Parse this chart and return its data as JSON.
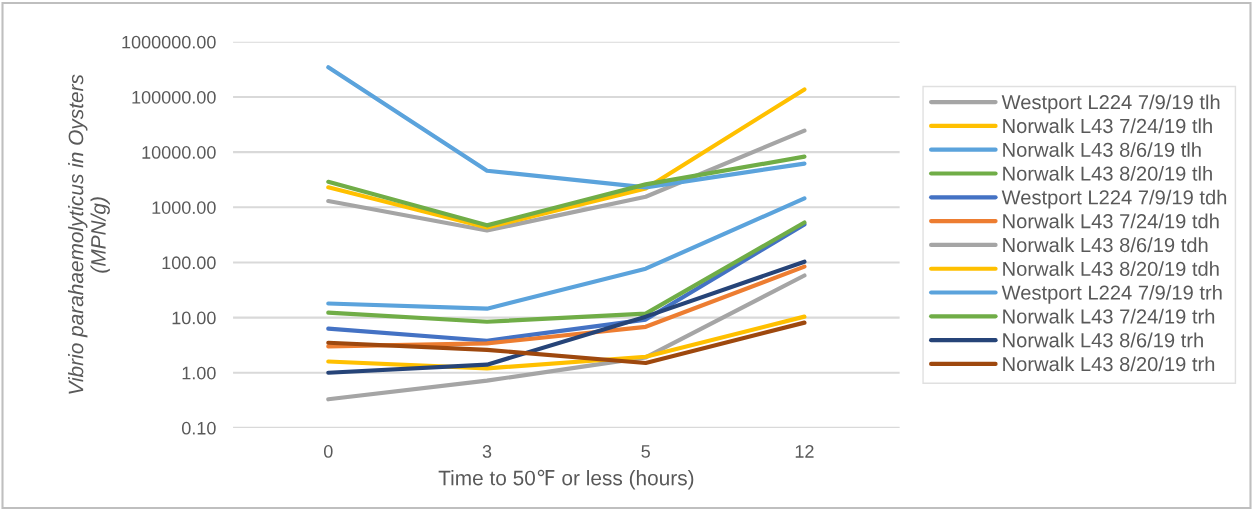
{
  "chart_data": {
    "type": "line",
    "xlabel": "Time to 50℉ or less (hours)",
    "ylabel": "Vibrio parahaemolyticus in Oysters\n(MPN/g)",
    "categories": [
      "0",
      "3",
      "5",
      "12"
    ],
    "log": "y",
    "ylim": [
      0.1,
      1000000
    ],
    "yticks": [
      {
        "value": 0.1,
        "label": "0.10"
      },
      {
        "value": 1,
        "label": "1.00"
      },
      {
        "value": 10,
        "label": "10.00"
      },
      {
        "value": 100,
        "label": "100.00"
      },
      {
        "value": 1000,
        "label": "1000.00"
      },
      {
        "value": 10000,
        "label": "10000.00"
      },
      {
        "value": 100000,
        "label": "100000.00"
      },
      {
        "value": 1000000,
        "label": "1000000.00"
      }
    ],
    "grid": "y",
    "legend": "right",
    "marker": "none",
    "line_style": "solid",
    "series": [
      {
        "name": "Westport L224 7/9/19 tlh",
        "color": "#a5a5a5",
        "values": [
          1300,
          380,
          1550,
          24500
        ]
      },
      {
        "name": "Norwalk L43 7/24/19 tlh",
        "color": "#ffc000",
        "values": [
          2300,
          430,
          2200,
          137000
        ]
      },
      {
        "name": "Norwalk L43 8/6/19 tlh",
        "color": "#5ba3dc",
        "values": [
          345000,
          4600,
          2300,
          6200
        ]
      },
      {
        "name": "Norwalk L43 8/20/19 tlh",
        "color": "#70ad47",
        "values": [
          2900,
          470,
          2600,
          8300
        ]
      },
      {
        "name": "Westport L224 7/9/19 tdh",
        "color": "#4472c4",
        "values": [
          6.3,
          3.8,
          9.2,
          490
        ]
      },
      {
        "name": "Norwalk L43 7/24/19 tdh",
        "color": "#ed7d31",
        "values": [
          3.0,
          3.4,
          6.8,
          84
        ]
      },
      {
        "name": "Norwalk L43 8/6/19 tdh",
        "color": "#a5a5a5",
        "values": [
          0.33,
          0.72,
          1.9,
          58
        ]
      },
      {
        "name": "Norwalk L43 8/20/19 tdh",
        "color": "#ffc000",
        "values": [
          1.6,
          1.2,
          1.95,
          10.4
        ]
      },
      {
        "name": "Westport L224 7/9/19 trh",
        "color": "#5ba3dc",
        "values": [
          18,
          14.5,
          77,
          1450
        ]
      },
      {
        "name": "Norwalk L43 7/24/19 trh",
        "color": "#70ad47",
        "values": [
          12.3,
          8.4,
          11.8,
          530
        ]
      },
      {
        "name": "Norwalk L43 8/6/19 trh",
        "color": "#264478",
        "values": [
          1.0,
          1.4,
          10.4,
          103
        ]
      },
      {
        "name": "Norwalk L43 8/20/19 trh",
        "color": "#9e480e",
        "values": [
          3.5,
          2.6,
          1.5,
          8.1
        ]
      }
    ]
  }
}
